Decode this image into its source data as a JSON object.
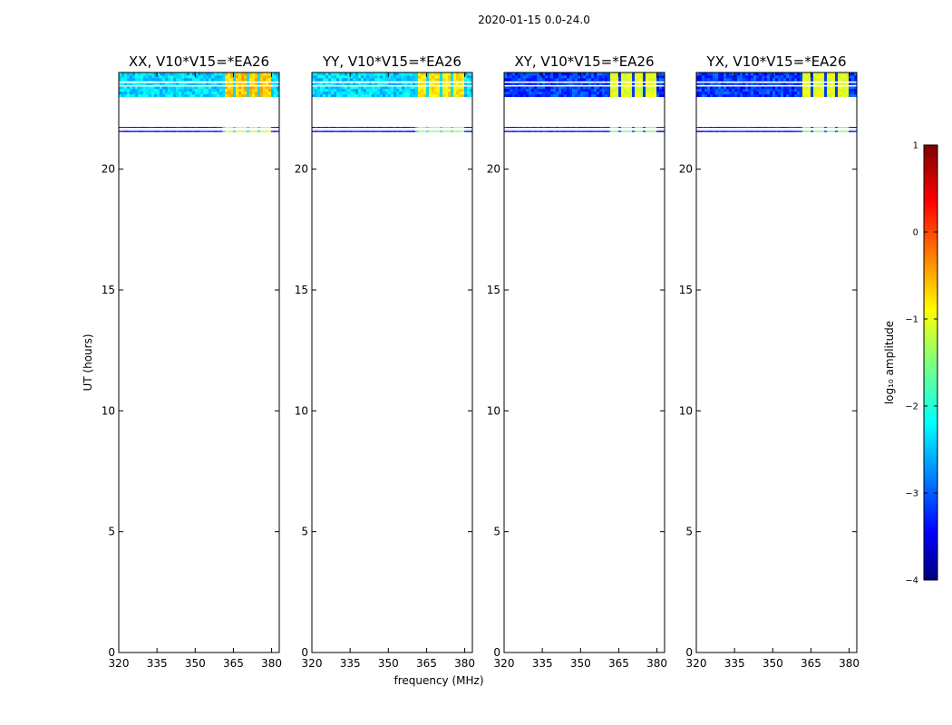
{
  "suptitle": "2020-01-15 0.0-24.0",
  "chart_data": {
    "type": "heatmap",
    "colormap": "jet",
    "xlabel": "frequency (MHz)",
    "ylabel": "UT (hours)",
    "xlim": [
      320,
      383
    ],
    "ylim": [
      0,
      24
    ],
    "xticks": [
      320,
      335,
      350,
      365,
      380
    ],
    "yticks": [
      0,
      5,
      10,
      15,
      20
    ],
    "xtick_labels": [
      "320",
      "335",
      "350",
      "365",
      "380"
    ],
    "ytick_labels": [
      "0",
      "5",
      "10",
      "15",
      "20"
    ],
    "time_blocks": [
      {
        "start": 23.0,
        "end": 24.0,
        "gaps": [
          23.45,
          23.6
        ]
      },
      {
        "start": 21.55,
        "end": 21.75,
        "gaps": [
          21.62,
          21.68
        ]
      }
    ],
    "high_amplitude_band_mhz": [
      361,
      380
    ],
    "panels": [
      {
        "title": "XX, V10*V15=*EA26",
        "polarization": "XX",
        "baseline_log10_amplitude": -2.3,
        "band_log10_amplitude": -0.6
      },
      {
        "title": "YY, V10*V15=*EA26",
        "polarization": "YY",
        "baseline_log10_amplitude": -2.3,
        "band_log10_amplitude": -0.8
      },
      {
        "title": "XY, V10*V15=*EA26",
        "polarization": "XY",
        "baseline_log10_amplitude": -3.1,
        "band_log10_amplitude": -1.0
      },
      {
        "title": "YX, V10*V15=*EA26",
        "polarization": "YX",
        "baseline_log10_amplitude": -3.1,
        "band_log10_amplitude": -1.0
      }
    ],
    "colorbar": {
      "label": "log₁₀ amplitude",
      "range": [
        -4,
        1
      ],
      "ticks": [
        1,
        0,
        -1,
        -2,
        -3,
        -4
      ],
      "tick_labels": [
        "1",
        "0",
        "−1",
        "−2",
        "−3",
        "−4"
      ]
    }
  }
}
